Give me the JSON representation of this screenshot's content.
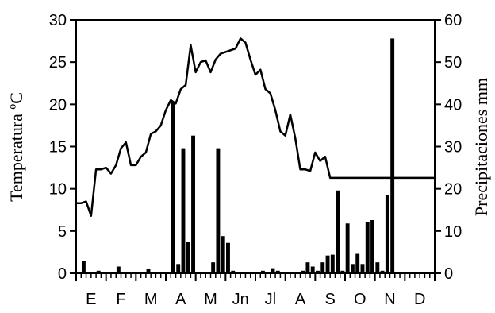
{
  "chart_data": {
    "type": "bar",
    "title": "",
    "ylabel_left": "Temperatura ºC",
    "ylabel_right": "Precipitaciones mm",
    "ylim_left": [
      0,
      30
    ],
    "ylim_right": [
      0,
      60
    ],
    "yticks_left": [
      0,
      5,
      10,
      15,
      20,
      25,
      30
    ],
    "yticks_right": [
      0,
      10,
      20,
      30,
      40,
      50,
      60
    ],
    "month_labels": [
      "E",
      "F",
      "M",
      "A",
      "M",
      "Jn",
      "Jl",
      "A",
      "S",
      "O",
      "N",
      "D"
    ],
    "grid": false,
    "series": [
      {
        "type": "bar",
        "axis": "right",
        "color": "#000000",
        "x": [
          1,
          4,
          8,
          14,
          19,
          20,
          21,
          22,
          23,
          27,
          28,
          29,
          30,
          31,
          37,
          39,
          40,
          45,
          46,
          47,
          48,
          49,
          50,
          51,
          52,
          53,
          54,
          55,
          56,
          57,
          58,
          59,
          60,
          61,
          62,
          63,
          64,
          65,
          66,
          67,
          68,
          69,
          70,
          71,
          72
        ],
        "values": [
          3,
          0.6,
          1.6,
          1,
          40.6,
          2.2,
          29.6,
          7.4,
          32.6,
          2.6,
          29.6,
          8.8,
          7.2,
          0.6,
          0.6,
          1.2,
          0.6,
          0.6,
          2.6,
          1.6,
          0.6,
          2.6,
          4.2,
          4.4,
          19.6,
          0.6,
          11.8,
          2.2,
          4.6,
          2.2,
          12.2,
          12.6,
          2.6,
          0.6,
          18.6,
          55.6,
          0,
          0,
          0,
          0,
          0,
          0,
          0,
          0,
          0
        ]
      },
      {
        "type": "line",
        "axis": "left",
        "color": "#000000",
        "x": [
          0,
          1,
          2,
          3,
          4,
          5,
          6,
          7,
          8,
          9,
          10,
          11,
          12,
          13,
          14,
          15,
          16,
          17,
          18,
          19,
          20,
          21,
          22,
          23,
          24,
          25,
          26,
          27,
          28,
          29,
          30,
          31,
          32,
          33,
          34,
          35,
          36,
          37,
          38,
          39,
          40,
          41,
          42,
          43,
          44,
          45,
          46,
          47,
          48,
          49,
          50,
          51,
          52,
          53,
          54,
          55,
          56,
          57,
          58,
          59,
          60,
          61,
          62,
          63,
          64,
          65,
          66,
          67,
          68,
          69,
          70,
          71,
          72
        ],
        "values": [
          8.3,
          8.3,
          8.5,
          6.8,
          12.3,
          12.3,
          12.5,
          11.8,
          12.8,
          14.8,
          15.5,
          12.8,
          12.8,
          13.8,
          14.3,
          16.5,
          16.8,
          17.5,
          19.3,
          20.5,
          20.1,
          21.8,
          22.3,
          27.0,
          23.8,
          25.0,
          25.2,
          23.8,
          25.3,
          26.0,
          26.2,
          26.4,
          26.6,
          27.8,
          27.3,
          25.3,
          23.5,
          24.1,
          21.8,
          21.3,
          19.3,
          16.8,
          16.3,
          18.8,
          16.0,
          12.3,
          12.3,
          12.1,
          14.3,
          13.3,
          13.8,
          11.3,
          11.3,
          11.3,
          11.3,
          11.3,
          11.3,
          11.3,
          11.3,
          11.3,
          11.3,
          11.3,
          11.3,
          11.3,
          11.3,
          11.3,
          11.3,
          11.3,
          11.3,
          11.3,
          11.3,
          11.3,
          11.3
        ]
      }
    ]
  }
}
